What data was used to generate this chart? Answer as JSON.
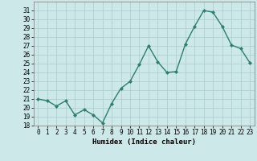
{
  "xlabel": "Humidex (Indice chaleur)",
  "x": [
    0,
    1,
    2,
    3,
    4,
    5,
    6,
    7,
    8,
    9,
    10,
    11,
    12,
    13,
    14,
    15,
    16,
    17,
    18,
    19,
    20,
    21,
    22,
    23
  ],
  "y": [
    21,
    20.8,
    20.2,
    20.8,
    19.2,
    19.8,
    19.2,
    18.3,
    20.5,
    22.2,
    23.0,
    24.9,
    27.0,
    25.2,
    24.0,
    24.1,
    27.2,
    29.2,
    31.0,
    30.8,
    29.2,
    27.1,
    26.7,
    25.1
  ],
  "line_color": "#2e7d6e",
  "marker": "D",
  "marker_size": 2.0,
  "bg_color": "#cce8e8",
  "grid_color": "#aacccc",
  "ylim": [
    18,
    32
  ],
  "yticks": [
    18,
    19,
    20,
    21,
    22,
    23,
    24,
    25,
    26,
    27,
    28,
    29,
    30,
    31
  ],
  "xticks": [
    0,
    1,
    2,
    3,
    4,
    5,
    6,
    7,
    8,
    9,
    10,
    11,
    12,
    13,
    14,
    15,
    16,
    17,
    18,
    19,
    20,
    21,
    22,
    23
  ],
  "tick_fontsize": 5.5,
  "label_fontsize": 6.5,
  "line_width": 1.0
}
